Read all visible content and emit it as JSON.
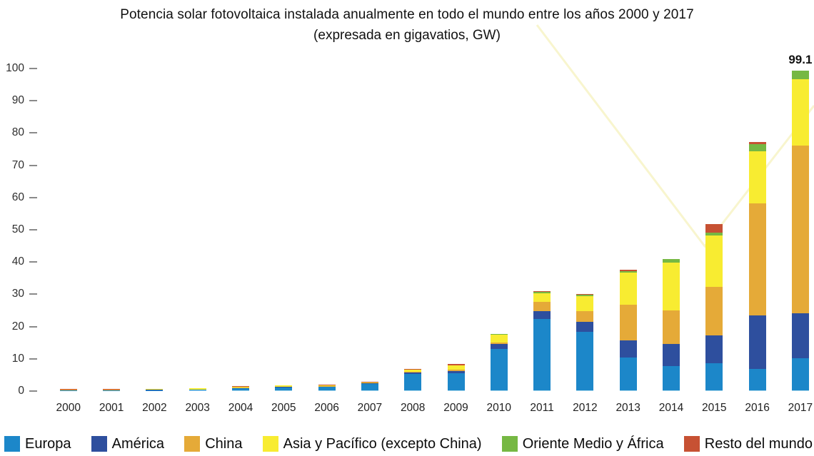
{
  "chart_data": {
    "type": "bar",
    "stacked": true,
    "title": "Potencia solar fotovoltaica instalada anualmente en todo el mundo entre los años 2000 y 2017",
    "subtitle": "(expresada en gigavatios, GW)",
    "unit": "GW",
    "ylim": [
      0,
      100
    ],
    "yticks": [
      0,
      10,
      20,
      30,
      40,
      50,
      60,
      70,
      80,
      90,
      100
    ],
    "grid": false,
    "legend_position": "bottom",
    "categories": [
      "2000",
      "2001",
      "2002",
      "2003",
      "2004",
      "2005",
      "2006",
      "2007",
      "2008",
      "2009",
      "2010",
      "2011",
      "2012",
      "2013",
      "2014",
      "2015",
      "2016",
      "2017"
    ],
    "series": [
      {
        "name": "Europa",
        "color": "#1c87c9",
        "values": [
          0.06,
          0.08,
          0.1,
          0.15,
          0.65,
          0.95,
          1.0,
          1.9,
          5.1,
          5.3,
          12.9,
          22.2,
          18.1,
          10.2,
          7.6,
          8.5,
          6.6,
          9.9
        ]
      },
      {
        "name": "América",
        "color": "#2e4f9e",
        "values": [
          0.02,
          0.03,
          0.05,
          0.05,
          0.1,
          0.12,
          0.15,
          0.22,
          0.35,
          0.65,
          1.5,
          2.4,
          3.1,
          5.2,
          6.8,
          8.5,
          16.6,
          14.0
        ]
      },
      {
        "name": "China",
        "color": "#e5aa38",
        "values": [
          0.1,
          0.1,
          0.1,
          0.1,
          0.1,
          0.08,
          0.1,
          0.1,
          0.3,
          0.4,
          0.5,
          2.8,
          3.3,
          11.1,
          10.3,
          15.1,
          34.8,
          52.0
        ]
      },
      {
        "name": "Asia y Pacífico (excepto China)",
        "color": "#f8ec31",
        "values": [
          0.12,
          0.13,
          0.25,
          0.28,
          0.35,
          0.3,
          0.35,
          0.25,
          0.7,
          1.3,
          2.4,
          2.7,
          4.8,
          10.0,
          14.8,
          15.9,
          16.1,
          20.6
        ]
      },
      {
        "name": "Oriente Medio y África",
        "color": "#76b843",
        "values": [
          0,
          0,
          0,
          0,
          0,
          0,
          0,
          0,
          0,
          0.1,
          0.15,
          0.45,
          0.45,
          0.4,
          1.2,
          1.0,
          2.2,
          2.6
        ]
      },
      {
        "name": "Resto del mundo",
        "color": "#c75133",
        "values": [
          0.05,
          0.06,
          0.05,
          0.02,
          0.05,
          0.05,
          0.1,
          0.1,
          0.25,
          0.45,
          0.15,
          0.2,
          0.2,
          0.4,
          0.1,
          2.5,
          0.6,
          0
        ]
      }
    ],
    "annotations": [
      {
        "category": "2017",
        "text": "99.1"
      }
    ]
  }
}
